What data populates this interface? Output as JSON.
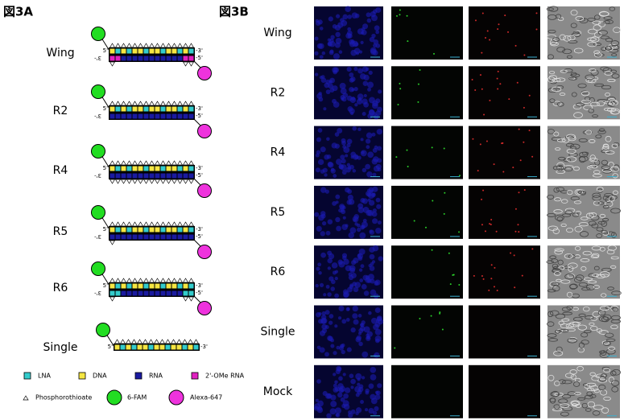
{
  "panel_a": {
    "label": "図3A",
    "constructs": [
      {
        "name": "Wing",
        "sense_5": "5'",
        "sense_3": "-3'",
        "antisense_3": "3'-",
        "antisense_5": "-5'"
      },
      {
        "name": "R2",
        "sense_5": "5'",
        "sense_3": "-3'",
        "antisense_3": "3'-",
        "antisense_5": "-5'"
      },
      {
        "name": "R4",
        "sense_5": "5'",
        "sense_3": "-3'",
        "antisense_3": "3'-",
        "antisense_5": "-5'"
      },
      {
        "name": "R5",
        "sense_5": "5'",
        "sense_3": "-3'",
        "antisense_3": "3'-",
        "antisense_5": "-5'"
      },
      {
        "name": "R6",
        "sense_5": "5'",
        "sense_3": "-3'",
        "antisense_3": "3'-",
        "antisense_5": "-5'"
      },
      {
        "name": "Single",
        "sense_5": "5'",
        "sense_3": "-3'"
      }
    ],
    "legend": [
      "LNA",
      "DNA",
      "RNA",
      "2'-OMe RNA",
      "Phosphorothioate",
      "6-FAM",
      "Alexa-647"
    ]
  },
  "panel_b": {
    "label": "図3B",
    "rows": [
      "Wing",
      "R2",
      "R4",
      "R5",
      "R6",
      "Single",
      "Mock"
    ]
  }
}
